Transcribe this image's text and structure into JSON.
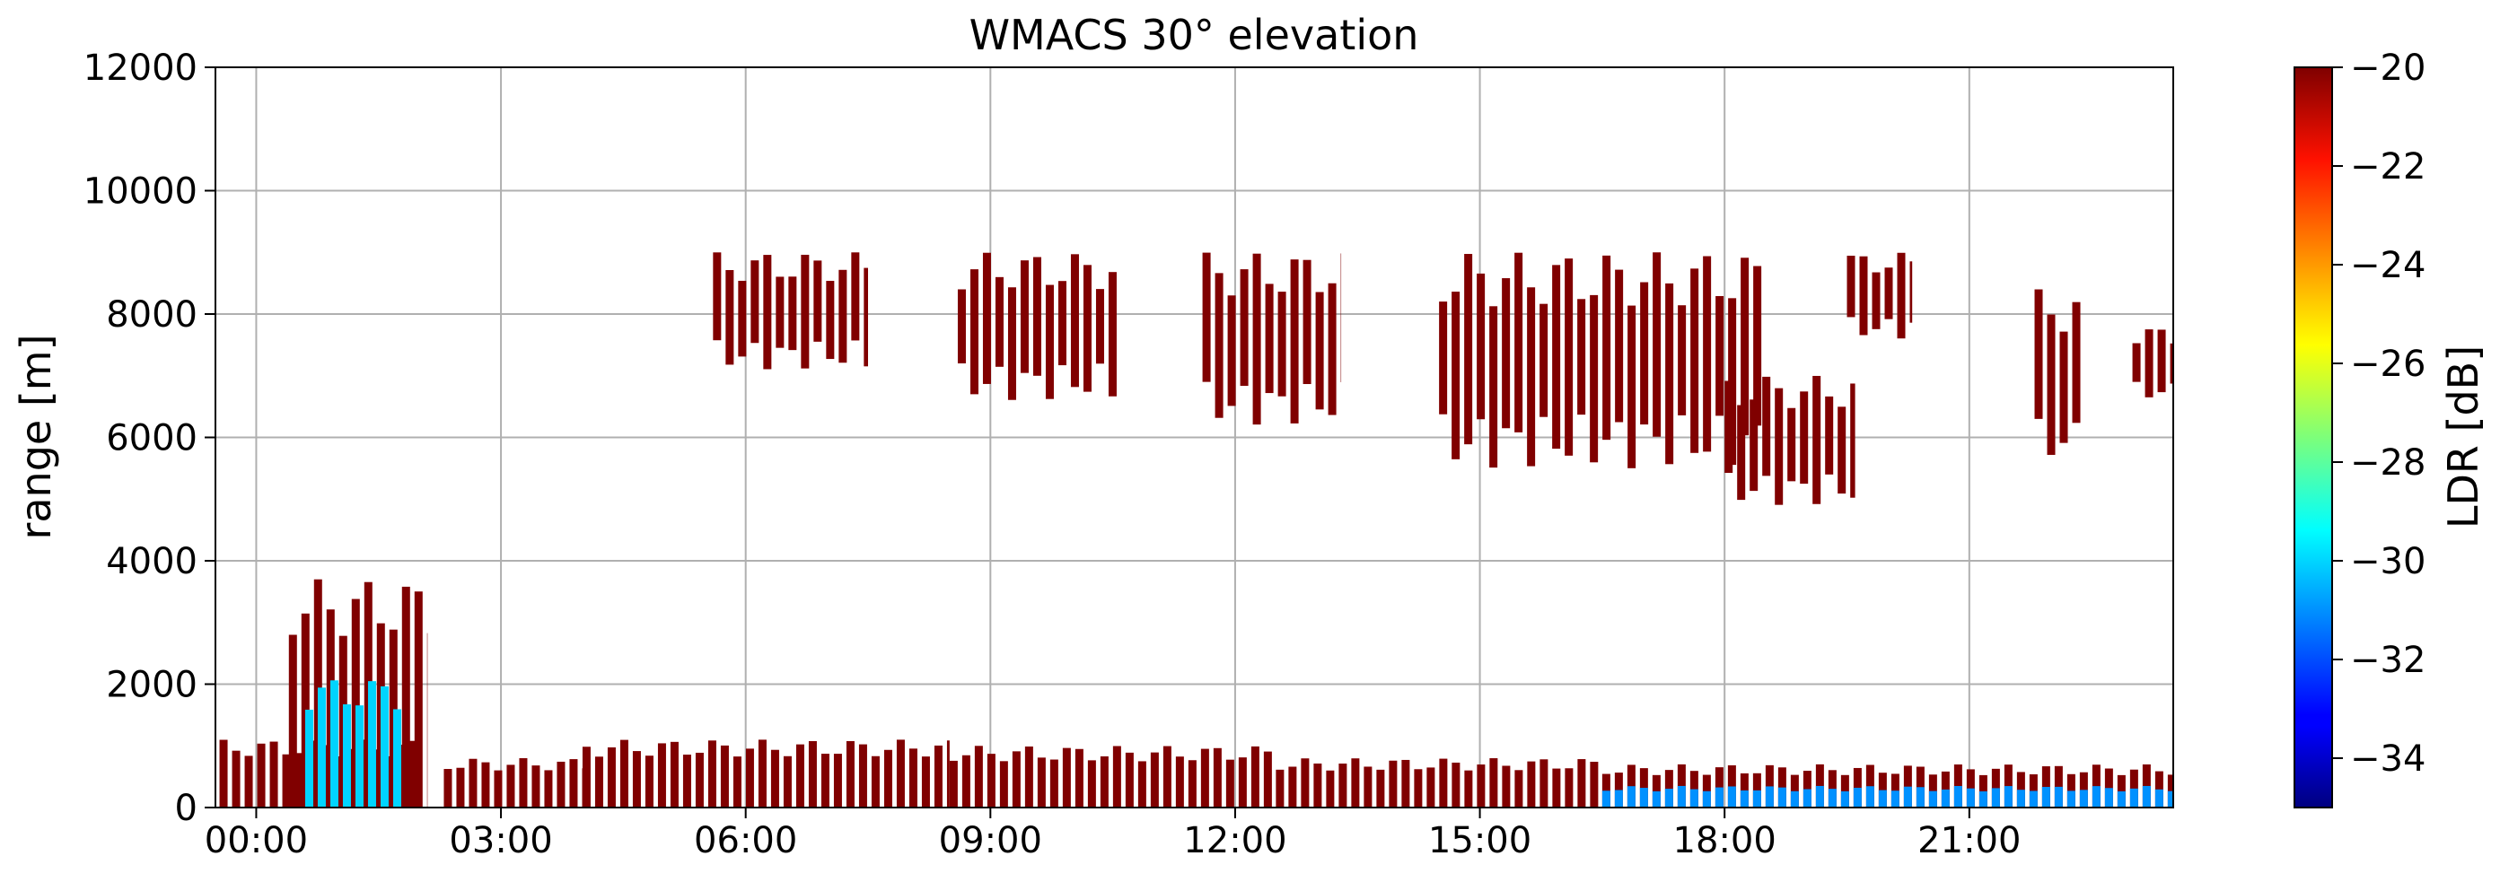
{
  "chart_data": {
    "type": "heatmap",
    "title": "WMACS 30° elevation",
    "ylabel": "range [m]",
    "xlabel": "",
    "xlim_hours": [
      -0.5,
      23.5
    ],
    "ylim": [
      0,
      12000
    ],
    "grid": true,
    "x_ticks": [
      {
        "value": 0,
        "label": "00:00"
      },
      {
        "value": 3,
        "label": "03:00"
      },
      {
        "value": 6,
        "label": "06:00"
      },
      {
        "value": 9,
        "label": "09:00"
      },
      {
        "value": 12,
        "label": "12:00"
      },
      {
        "value": 15,
        "label": "15:00"
      },
      {
        "value": 18,
        "label": "18:00"
      },
      {
        "value": 21,
        "label": "21:00"
      }
    ],
    "y_ticks": [
      {
        "value": 0,
        "label": "0"
      },
      {
        "value": 2000,
        "label": "2000"
      },
      {
        "value": 4000,
        "label": "4000"
      },
      {
        "value": 6000,
        "label": "6000"
      },
      {
        "value": 8000,
        "label": "8000"
      },
      {
        "value": 10000,
        "label": "10000"
      },
      {
        "value": 12000,
        "label": "12000"
      }
    ],
    "colorbar": {
      "label": "LDR [dB]",
      "colormap": "jet",
      "range": [
        -35,
        -20
      ],
      "ticks": [
        {
          "value": -20,
          "label": "−20"
        },
        {
          "value": -22,
          "label": "−22"
        },
        {
          "value": -24,
          "label": "−24"
        },
        {
          "value": -26,
          "label": "−26"
        },
        {
          "value": -28,
          "label": "−28"
        },
        {
          "value": -30,
          "label": "−30"
        },
        {
          "value": -32,
          "label": "−32"
        },
        {
          "value": -34,
          "label": "−34"
        }
      ]
    },
    "echo_regions": [
      {
        "name": "boundary-layer-early",
        "t_start": -0.45,
        "t_end": 2.0,
        "z_bottom": 0,
        "z_top": 1100,
        "ldr": -20
      },
      {
        "name": "precipitation-shaft",
        "t_start": 0.4,
        "t_end": 2.1,
        "z_bottom": 0,
        "z_top": 3700,
        "ldr": -20
      },
      {
        "name": "precipitation-core",
        "t_start": 0.6,
        "t_end": 1.8,
        "z_bottom": 0,
        "z_top": 2100,
        "ldr": -30
      },
      {
        "name": "low-cloud-1",
        "t_start": 2.3,
        "t_end": 4.0,
        "z_bottom": 0,
        "z_top": 800,
        "ldr": -20
      },
      {
        "name": "low-cloud-2",
        "t_start": 4.0,
        "t_end": 8.5,
        "z_bottom": 0,
        "z_top": 1100,
        "ldr": -20
      },
      {
        "name": "low-cloud-3",
        "t_start": 8.5,
        "t_end": 12.5,
        "z_bottom": 0,
        "z_top": 1000,
        "ldr": -20
      },
      {
        "name": "low-cloud-4",
        "t_start": 12.5,
        "t_end": 16.5,
        "z_bottom": 0,
        "z_top": 800,
        "ldr": -20
      },
      {
        "name": "low-cloud-5",
        "t_start": 16.5,
        "t_end": 23.5,
        "z_bottom": 0,
        "z_top": 700,
        "ldr": -20
      },
      {
        "name": "low-cloud-base",
        "t_start": 16.5,
        "t_end": 23.5,
        "z_bottom": 0,
        "z_top": 350,
        "ldr": -31
      },
      {
        "name": "cirrus-1",
        "t_start": 5.6,
        "t_end": 7.5,
        "z_bottom": 7100,
        "z_top": 9000,
        "ldr": -20
      },
      {
        "name": "cirrus-2",
        "t_start": 8.6,
        "t_end": 10.6,
        "z_bottom": 6600,
        "z_top": 9000,
        "ldr": -20
      },
      {
        "name": "cirrus-3",
        "t_start": 11.6,
        "t_end": 13.3,
        "z_bottom": 6200,
        "z_top": 9000,
        "ldr": -20
      },
      {
        "name": "cirrus-4",
        "t_start": 14.5,
        "t_end": 18.5,
        "z_bottom": 5500,
        "z_top": 9000,
        "ldr": -20
      },
      {
        "name": "cirrus-5",
        "t_start": 18.0,
        "t_end": 19.6,
        "z_bottom": 4900,
        "z_top": 7000,
        "ldr": -20
      },
      {
        "name": "cirrus-6",
        "t_start": 19.5,
        "t_end": 20.3,
        "z_bottom": 7600,
        "z_top": 9000,
        "ldr": -20
      },
      {
        "name": "cirrus-7",
        "t_start": 21.8,
        "t_end": 22.4,
        "z_bottom": 5600,
        "z_top": 8400,
        "ldr": -20
      },
      {
        "name": "cirrus-8",
        "t_start": 23.0,
        "t_end": 23.5,
        "z_bottom": 6600,
        "z_top": 7800,
        "ldr": -20
      }
    ]
  }
}
